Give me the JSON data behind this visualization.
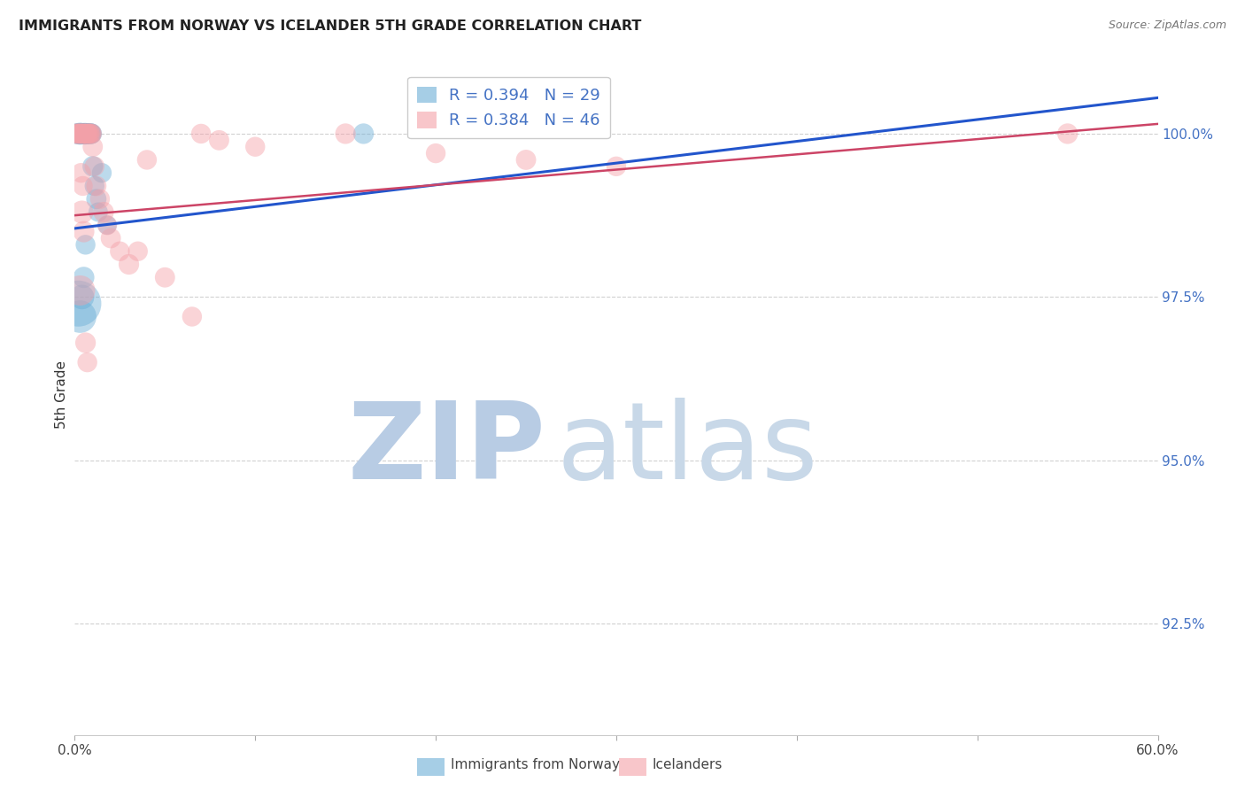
{
  "title": "IMMIGRANTS FROM NORWAY VS ICELANDER 5TH GRADE CORRELATION CHART",
  "source": "Source: ZipAtlas.com",
  "ylabel": "5th Grade",
  "yticks": [
    92.5,
    95.0,
    97.5,
    100.0
  ],
  "ytick_labels": [
    "92.5%",
    "95.0%",
    "97.5%",
    "100.0%"
  ],
  "ytick_color": "#4472c4",
  "xmin": 0.0,
  "xmax": 60.0,
  "ymin": 90.8,
  "ymax": 101.2,
  "norway_R": 0.394,
  "norway_N": 29,
  "iceland_R": 0.384,
  "iceland_N": 46,
  "norway_color": "#6baed6",
  "iceland_color": "#f4a0a8",
  "trendline_norway_color": "#2255cc",
  "trendline_iceland_color": "#cc4466",
  "watermark_ZIP_color": "#b8cce4",
  "watermark_atlas_color": "#c8d8e8",
  "norway_x": [
    0.15,
    0.2,
    0.25,
    0.3,
    0.35,
    0.4,
    0.45,
    0.5,
    0.55,
    0.6,
    0.65,
    0.7,
    0.75,
    0.8,
    0.85,
    0.9,
    0.95,
    1.0,
    1.1,
    1.2,
    1.3,
    1.5,
    1.8,
    0.2,
    0.3,
    0.4,
    0.5,
    16.0,
    0.6
  ],
  "norway_y": [
    100.0,
    100.0,
    100.0,
    100.0,
    100.0,
    100.0,
    100.0,
    100.0,
    100.0,
    100.0,
    100.0,
    100.0,
    100.0,
    100.0,
    100.0,
    100.0,
    100.0,
    99.5,
    99.2,
    99.0,
    98.8,
    99.4,
    98.6,
    97.4,
    97.2,
    97.5,
    97.8,
    100.0,
    98.3
  ],
  "norway_sizes": [
    300,
    250,
    280,
    320,
    300,
    280,
    260,
    290,
    310,
    280,
    300,
    270,
    280,
    260,
    290,
    280,
    270,
    280,
    260,
    270,
    250,
    260,
    240,
    1400,
    700,
    400,
    300,
    280,
    260
  ],
  "iceland_x": [
    0.1,
    0.15,
    0.2,
    0.25,
    0.3,
    0.35,
    0.4,
    0.45,
    0.5,
    0.55,
    0.6,
    0.65,
    0.7,
    0.75,
    0.8,
    0.85,
    0.9,
    0.95,
    1.0,
    1.1,
    1.2,
    1.4,
    1.6,
    1.8,
    2.0,
    2.5,
    3.0,
    4.0,
    5.0,
    7.0,
    8.0,
    10.0,
    15.0,
    20.0,
    25.0,
    30.0,
    55.0,
    0.3,
    0.4,
    0.5,
    0.6,
    0.7,
    3.5,
    6.5,
    0.35,
    0.45
  ],
  "iceland_y": [
    100.0,
    100.0,
    100.0,
    100.0,
    100.0,
    100.0,
    100.0,
    100.0,
    100.0,
    100.0,
    100.0,
    100.0,
    100.0,
    100.0,
    100.0,
    100.0,
    100.0,
    100.0,
    99.8,
    99.5,
    99.2,
    99.0,
    98.8,
    98.6,
    98.4,
    98.2,
    98.0,
    99.6,
    97.8,
    100.0,
    99.9,
    99.8,
    100.0,
    99.7,
    99.6,
    99.5,
    100.0,
    97.6,
    98.8,
    98.5,
    96.8,
    96.5,
    98.2,
    97.2,
    99.4,
    99.2
  ],
  "iceland_sizes": [
    280,
    260,
    270,
    260,
    280,
    270,
    260,
    280,
    270,
    260,
    270,
    260,
    280,
    260,
    270,
    260,
    280,
    260,
    270,
    260,
    270,
    260,
    280,
    260,
    270,
    260,
    280,
    260,
    270,
    260,
    270,
    260,
    280,
    260,
    270,
    260,
    280,
    600,
    350,
    300,
    280,
    260,
    260,
    260,
    260,
    260
  ]
}
